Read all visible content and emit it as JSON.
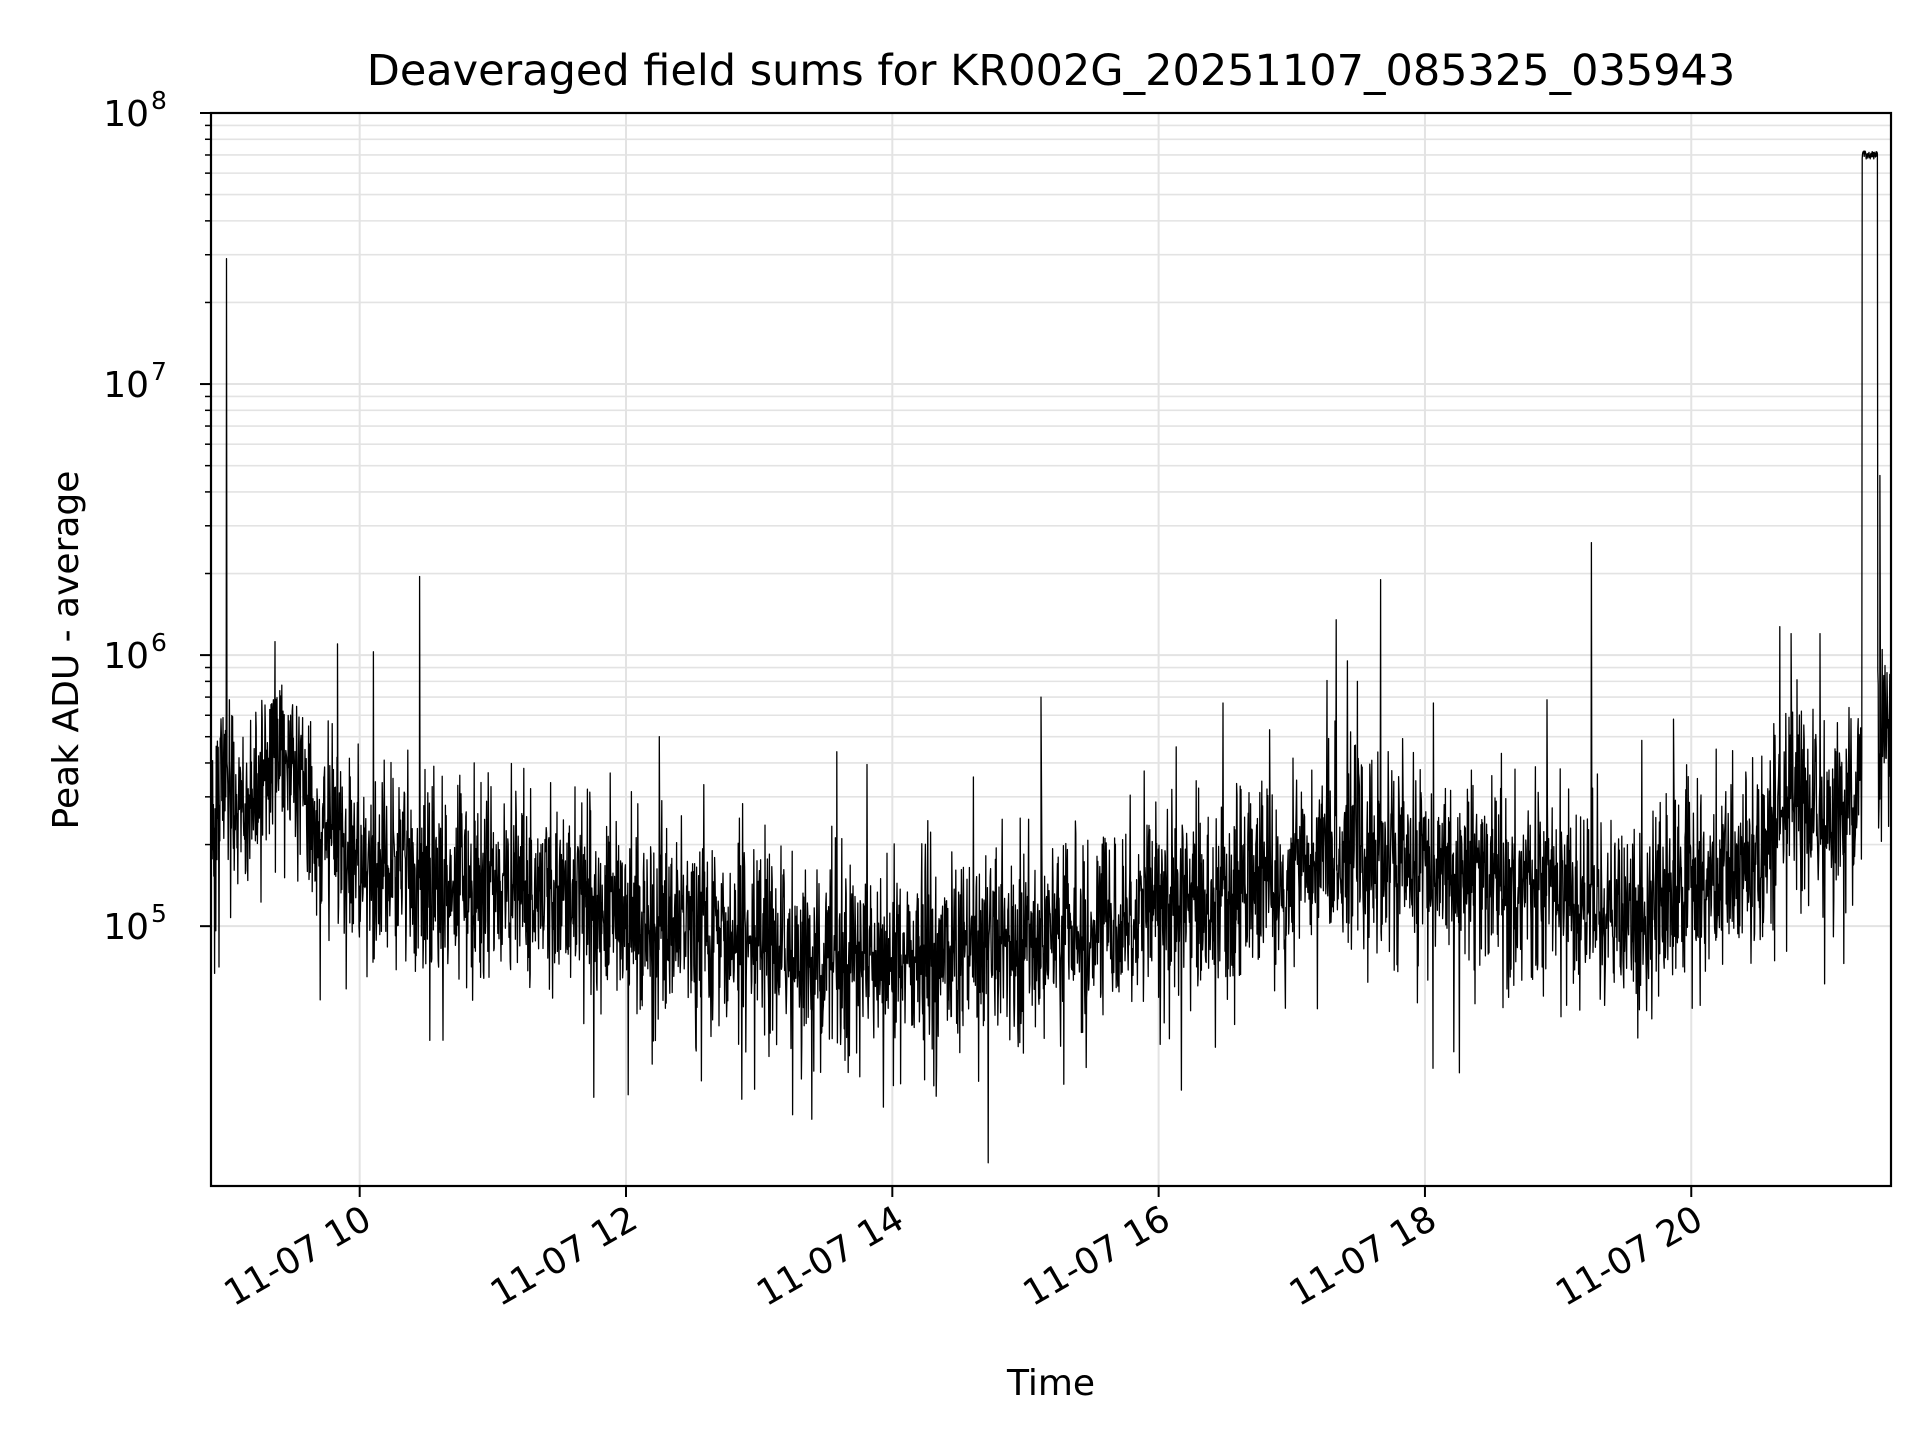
{
  "chart_data": {
    "type": "line",
    "title": "Deaveraged field sums for KR002G_20251107_085325_035943",
    "xlabel": "Time",
    "ylabel": "Peak ADU - average",
    "x_range": [
      "2025-11-07 08:53",
      "2025-11-07 21:30"
    ],
    "y_scale": "log",
    "ylim": [
      11000,
      100000000
    ],
    "grid": {
      "major": true,
      "minor_y": true
    },
    "line_color": "#000000",
    "x_ticks": [
      {
        "value": "2025-11-07 10:00",
        "label": "11-07 10"
      },
      {
        "value": "2025-11-07 12:00",
        "label": "11-07 12"
      },
      {
        "value": "2025-11-07 14:00",
        "label": "11-07 14"
      },
      {
        "value": "2025-11-07 16:00",
        "label": "11-07 16"
      },
      {
        "value": "2025-11-07 18:00",
        "label": "11-07 18"
      },
      {
        "value": "2025-11-07 20:00",
        "label": "11-07 20"
      }
    ],
    "y_ticks": [
      {
        "value": 100000,
        "base": "10",
        "exp": "5"
      },
      {
        "value": 1000000,
        "base": "10",
        "exp": "6"
      },
      {
        "value": 10000000,
        "base": "10",
        "exp": "7"
      },
      {
        "value": 100000000,
        "base": "10",
        "exp": "8"
      }
    ],
    "series": [
      {
        "x": [
          "2025-11-07 08:53",
          "2025-11-07 09:00",
          "2025-11-07 09:10",
          "2025-11-07 09:20",
          "2025-11-07 09:30",
          "2025-11-07 09:45",
          "2025-11-07 10:00",
          "2025-11-07 10:30",
          "2025-11-07 11:00",
          "2025-11-07 11:30",
          "2025-11-07 12:00",
          "2025-11-07 12:30",
          "2025-11-07 13:00",
          "2025-11-07 13:30",
          "2025-11-07 14:00",
          "2025-11-07 14:30",
          "2025-11-07 15:00",
          "2025-11-07 15:30",
          "2025-11-07 16:00",
          "2025-11-07 16:30",
          "2025-11-07 17:00",
          "2025-11-07 17:15",
          "2025-11-07 17:30",
          "2025-11-07 18:00",
          "2025-11-07 18:30",
          "2025-11-07 19:00",
          "2025-11-07 19:30",
          "2025-11-07 20:00",
          "2025-11-07 20:30",
          "2025-11-07 20:45",
          "2025-11-07 21:00",
          "2025-11-07 21:15",
          "2025-11-07 21:30"
        ],
        "y": [
          200000,
          300000,
          250000,
          450000,
          350000,
          200000,
          180000,
          150000,
          140000,
          130000,
          110000,
          90000,
          85000,
          80000,
          75000,
          78000,
          85000,
          100000,
          120000,
          130000,
          150000,
          200000,
          190000,
          160000,
          150000,
          140000,
          110000,
          140000,
          160000,
          300000,
          250000,
          350000,
          550000
        ]
      }
    ],
    "spikes": [
      {
        "x": "2025-11-07 09:00",
        "y": 29000000
      },
      {
        "x": "2025-11-07 09:50",
        "y": 1100000
      },
      {
        "x": "2025-11-07 10:27",
        "y": 1950000
      },
      {
        "x": "2025-11-07 12:15",
        "y": 500000
      },
      {
        "x": "2025-11-07 13:35",
        "y": 440000
      },
      {
        "x": "2025-11-07 15:07",
        "y": 700000
      },
      {
        "x": "2025-11-07 16:50",
        "y": 530000
      },
      {
        "x": "2025-11-07 17:20",
        "y": 1350000
      },
      {
        "x": "2025-11-07 17:40",
        "y": 1900000
      },
      {
        "x": "2025-11-07 19:15",
        "y": 2600000
      },
      {
        "x": "2025-11-07 19:52",
        "y": 580000
      },
      {
        "x": "2025-11-07 20:45",
        "y": 1200000
      },
      {
        "x": "2025-11-07 20:58",
        "y": 1200000
      },
      {
        "x": "2025-11-07 21:25",
        "y": 4600000
      }
    ],
    "plateau": {
      "x_start": "2025-11-07 21:17",
      "x_end": "2025-11-07 21:24",
      "y": 70000000
    }
  }
}
